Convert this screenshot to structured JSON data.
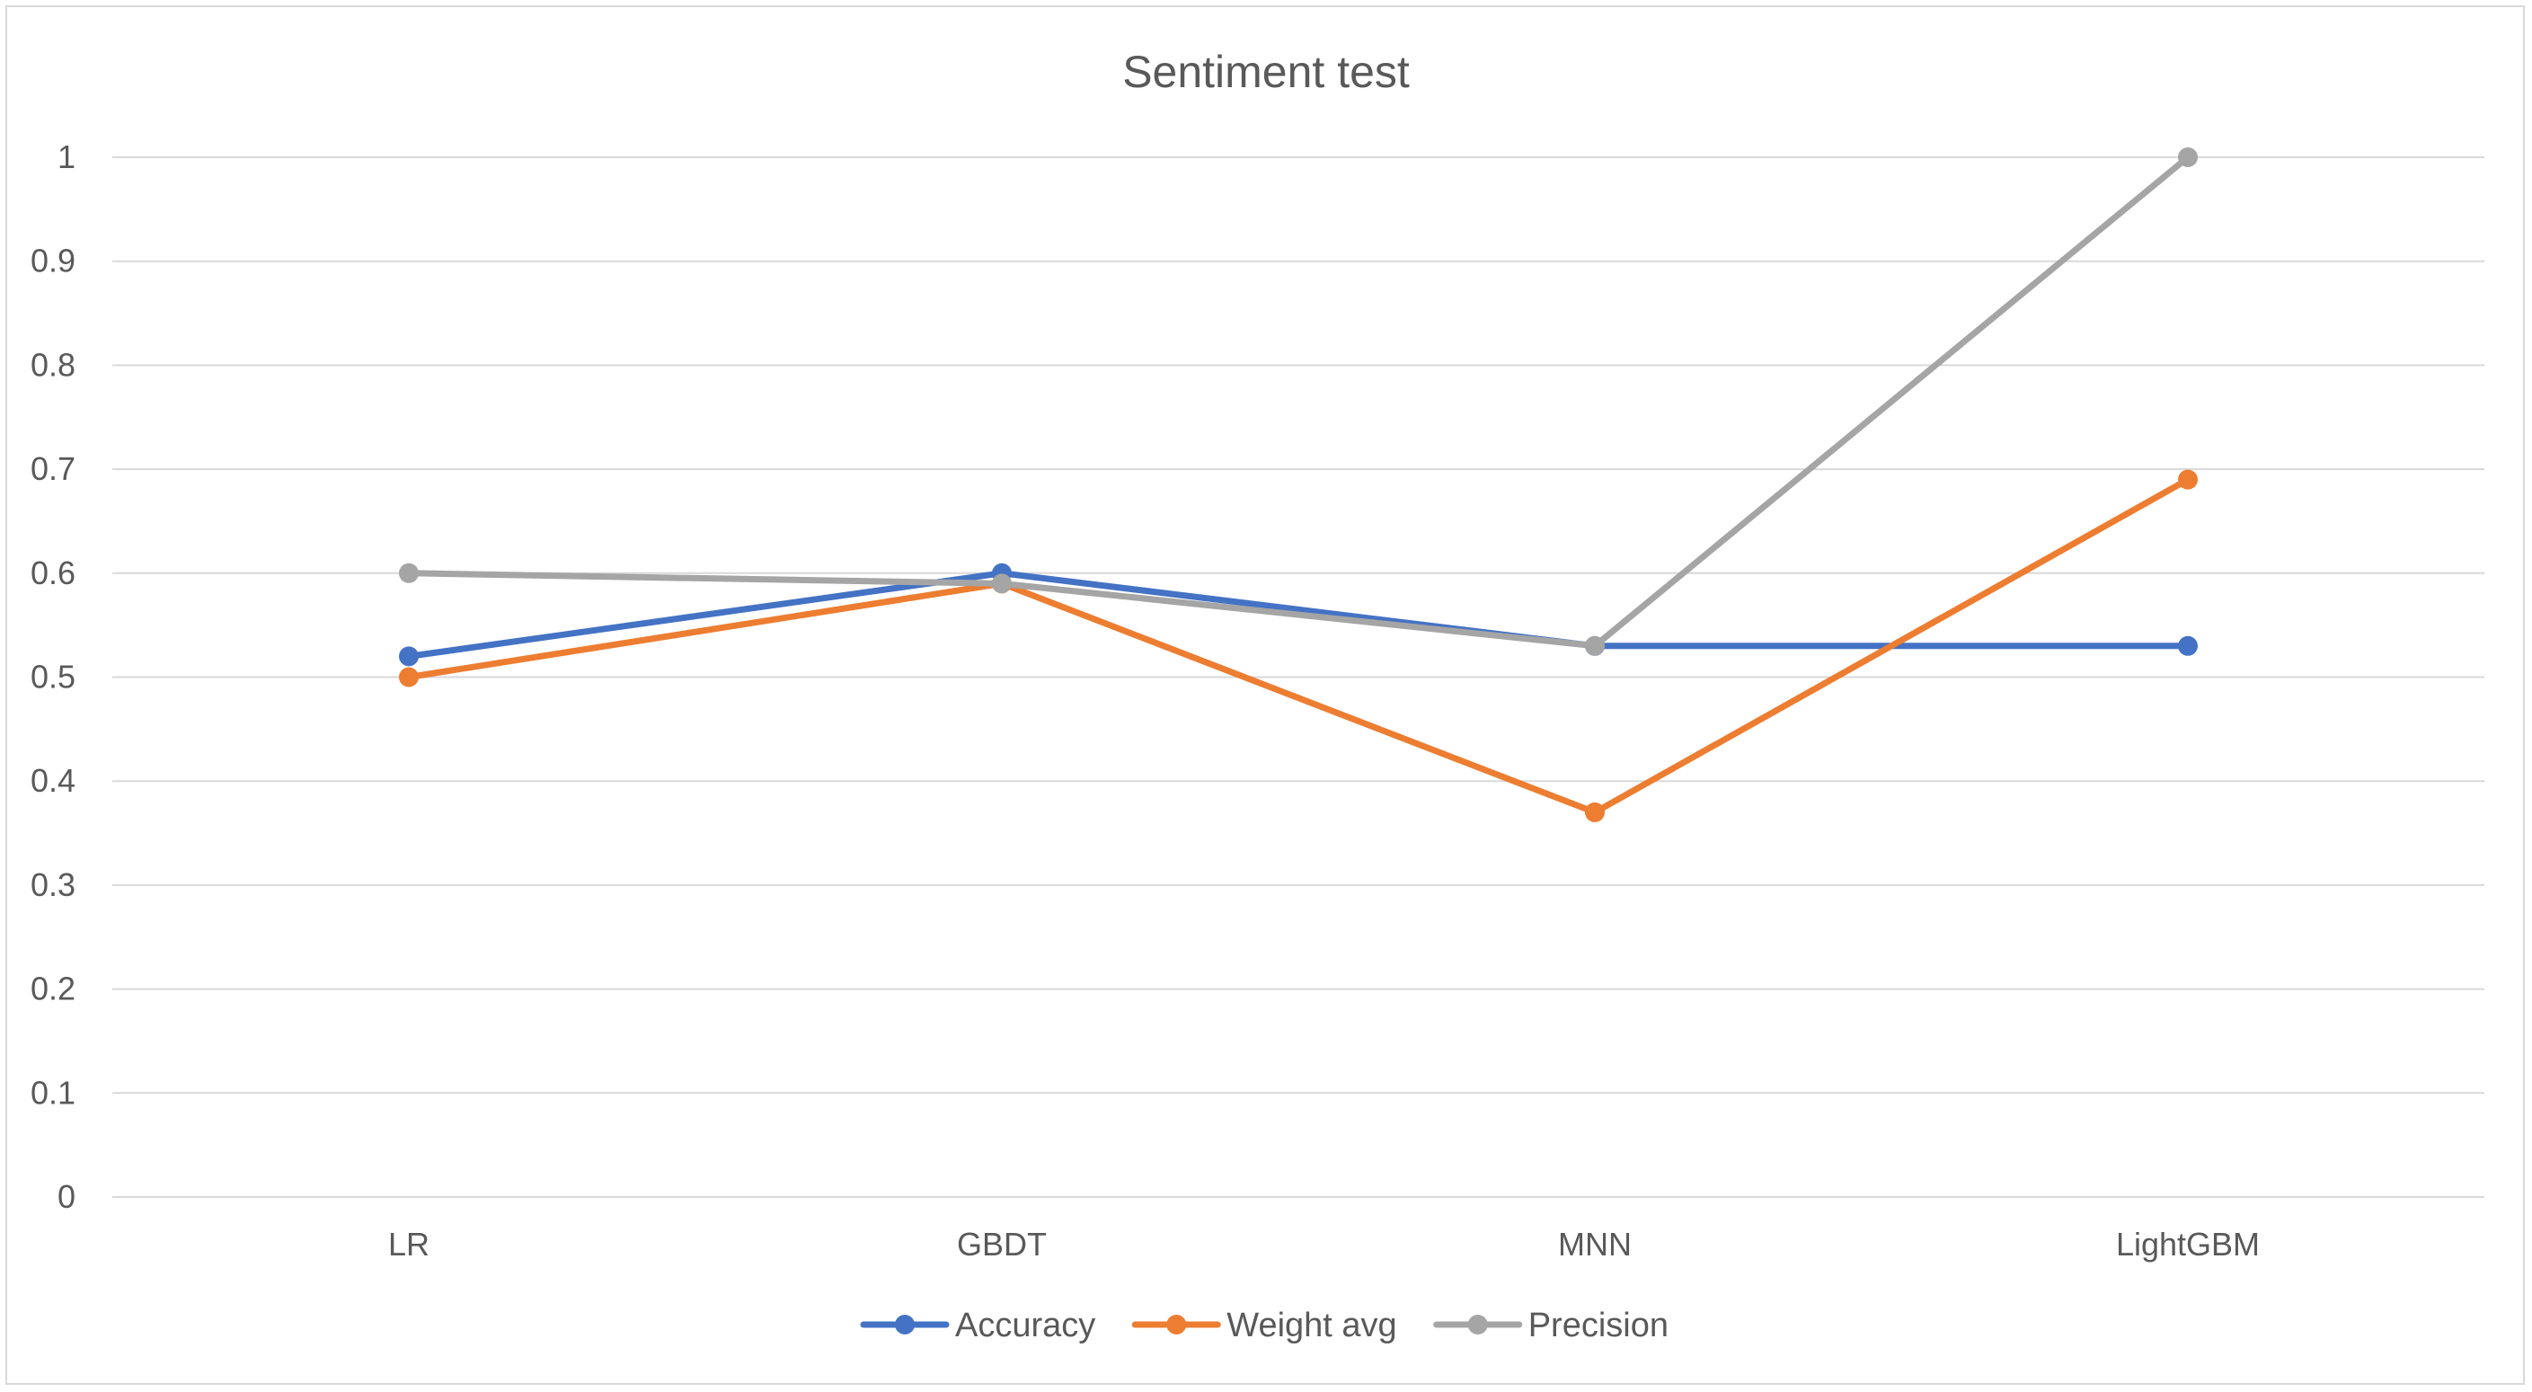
{
  "chart_data": {
    "type": "line",
    "title": "Sentiment test",
    "xlabel": "",
    "ylabel": "",
    "categories": [
      "LR",
      "GBDT",
      "MNN",
      "LightGBM"
    ],
    "ylim": [
      0,
      1
    ],
    "yticks": [
      "0",
      "0.1",
      "0.2",
      "0.3",
      "0.4",
      "0.5",
      "0.6",
      "0.7",
      "0.8",
      "0.9",
      "1"
    ],
    "grid": true,
    "legend_position": "bottom",
    "series": [
      {
        "name": "Accuracy",
        "color": "#4472c4",
        "values": [
          0.52,
          0.6,
          0.53,
          0.53
        ]
      },
      {
        "name": "Weight avg",
        "color": "#ed7d31",
        "values": [
          0.5,
          0.59,
          0.37,
          0.69
        ]
      },
      {
        "name": "Precision",
        "color": "#a5a5a5",
        "values": [
          0.6,
          0.59,
          0.53,
          1.0
        ]
      }
    ]
  }
}
